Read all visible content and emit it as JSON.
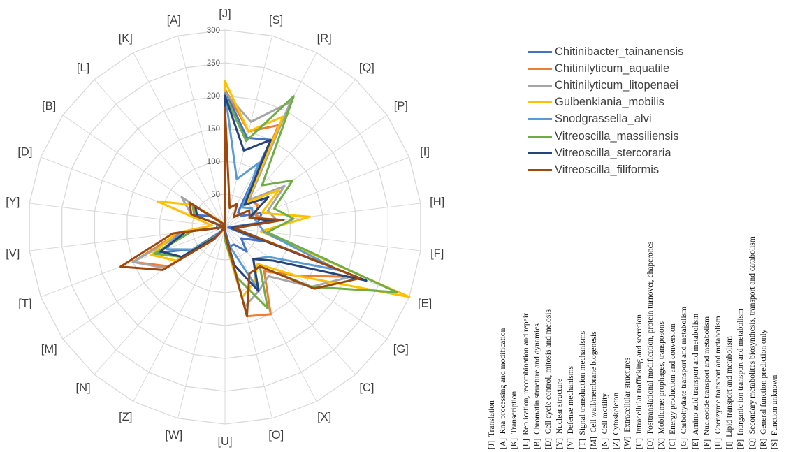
{
  "chart_data": {
    "type": "radar",
    "title": "",
    "axes": [
      "[J]",
      "[S]",
      "[R]",
      "[Q]",
      "[P]",
      "[I]",
      "[H]",
      "[F]",
      "[E]",
      "[G]",
      "[C]",
      "[X]",
      "[O]",
      "[U]",
      "[W]",
      "[Z]",
      "[N]",
      "[M]",
      "[T]",
      "[V]",
      "[Y]",
      "[D]",
      "[B]",
      "[L]",
      "[K]",
      "[A]"
    ],
    "rlim": [
      0,
      300
    ],
    "ticks": [
      "0",
      "50",
      "100",
      "150",
      "200",
      "250",
      "300"
    ],
    "grid": true,
    "legend_position": "right",
    "series": [
      {
        "name": "Chitinibacter_tainanensis",
        "color": "#4472C4",
        "values": [
          208,
          140,
          150,
          30,
          30,
          60,
          50,
          5,
          60,
          30,
          50,
          30,
          30,
          5,
          0,
          0,
          10,
          60,
          110,
          60,
          0,
          50,
          30,
          15,
          5,
          0
        ]
      },
      {
        "name": "Chitinilyticum_aquatile",
        "color": "#ED7D31",
        "values": [
          210,
          150,
          175,
          55,
          60,
          50,
          70,
          10,
          215,
          130,
          90,
          150,
          140,
          10,
          0,
          0,
          15,
          105,
          150,
          70,
          0,
          45,
          60,
          10,
          5,
          0
        ]
      },
      {
        "name": "Chitinilyticum_litopenaei",
        "color": "#A5A5A5",
        "values": [
          205,
          165,
          215,
          55,
          110,
          70,
          80,
          15,
          210,
          160,
          100,
          110,
          125,
          20,
          0,
          0,
          25,
          110,
          150,
          60,
          0,
          55,
          80,
          10,
          5,
          0
        ]
      },
      {
        "name": "Gulbenkiania_mobilis",
        "color": "#FFC000",
        "values": [
          222,
          150,
          190,
          50,
          100,
          60,
          130,
          55,
          300,
          130,
          75,
          95,
          110,
          20,
          0,
          5,
          20,
          90,
          120,
          75,
          20,
          110,
          60,
          15,
          5,
          0
        ]
      },
      {
        "name": "Snodgrassella_alvi",
        "color": "#5B9BD5",
        "values": [
          205,
          75,
          110,
          40,
          50,
          45,
          50,
          60,
          185,
          80,
          65,
          105,
          30,
          15,
          0,
          0,
          20,
          60,
          95,
          70,
          0,
          50,
          60,
          10,
          5,
          0
        ]
      },
      {
        "name": "Vitreoscilla_massiliensis",
        "color": "#70AD47",
        "values": [
          200,
          135,
          225,
          85,
          125,
          80,
          105,
          65,
          280,
          160,
          80,
          140,
          80,
          20,
          0,
          0,
          15,
          80,
          115,
          50,
          0,
          50,
          60,
          10,
          5,
          0
        ]
      },
      {
        "name": "Vitreoscilla_stercoraria",
        "color": "#264478",
        "values": [
          200,
          120,
          150,
          45,
          80,
          40,
          75,
          10,
          230,
          90,
          65,
          110,
          60,
          10,
          0,
          0,
          20,
          80,
          105,
          60,
          0,
          45,
          55,
          10,
          5,
          0
        ]
      },
      {
        "name": "Vitreoscilla_filiformis",
        "color": "#9E480E",
        "values": [
          182,
          30,
          40,
          20,
          45,
          40,
          90,
          15,
          220,
          165,
          80,
          80,
          140,
          10,
          0,
          0,
          25,
          115,
          170,
          80,
          0,
          55,
          65,
          10,
          5,
          0
        ]
      }
    ]
  },
  "legend_items": [
    "Chitinibacter_tainanensis",
    "Chitinilyticum_aquatile",
    "Chitinilyticum_litopenaei",
    "Gulbenkiania_mobilis",
    "Snodgrassella_alvi",
    "Vitreoscilla_massiliensis",
    "Vitreoscilla_stercoraria",
    "Vitreoscilla_filiformis"
  ],
  "category_codes": [
    {
      "code": "[J]",
      "label": "Translation"
    },
    {
      "code": "[A]",
      "label": "Rna processing and modification"
    },
    {
      "code": "[K]",
      "label": "Transcription"
    },
    {
      "code": "[L]",
      "label": "Replication, recombination and repair"
    },
    {
      "code": "[B]",
      "label": "Chromatin structure and dynamics"
    },
    {
      "code": "[D]",
      "label": "Cell cycle control, mitosis and meiosis"
    },
    {
      "code": "[Y]",
      "label": "Nuclear structure"
    },
    {
      "code": "[V]",
      "label": "Defense mechanisms"
    },
    {
      "code": "[T]",
      "label": "Signal transduction mechanisms"
    },
    {
      "code": "[M]",
      "label": "Cell wall/membrane biogenesis"
    },
    {
      "code": "[N]",
      "label": "Cell motility"
    },
    {
      "code": "[Z]",
      "label": "Cytoskeleton"
    },
    {
      "code": "[W]",
      "label": "Extracellular structures"
    },
    {
      "code": "[U]",
      "label": "Intracellular trafficking and secretion"
    },
    {
      "code": "[O]",
      "label": "Posttranslational modification, protein turnover, chaperones"
    },
    {
      "code": "[X]",
      "label": "Mobilome: prophages, transposons"
    },
    {
      "code": "[C]",
      "label": "Energy production and conversion"
    },
    {
      "code": "[G]",
      "label": "Carbohydrate transport and metabolism"
    },
    {
      "code": "[E]",
      "label": "Amino acid transport and metabolism"
    },
    {
      "code": "[F]",
      "label": "Nucleotide transport and metabolism"
    },
    {
      "code": "[H]",
      "label": "Coenzyme transport and metabolism"
    },
    {
      "code": "[I]",
      "label": "Lipid transport and metabolism"
    },
    {
      "code": "[P]",
      "label": "Inorganic ion transport and metabolism"
    },
    {
      "code": "[Q]",
      "label": "Secondary metabolites biosynthesis, transport and catabolism"
    },
    {
      "code": "[R]",
      "label": "General function prediction only"
    },
    {
      "code": "[S]",
      "label": "Function unknown"
    }
  ]
}
